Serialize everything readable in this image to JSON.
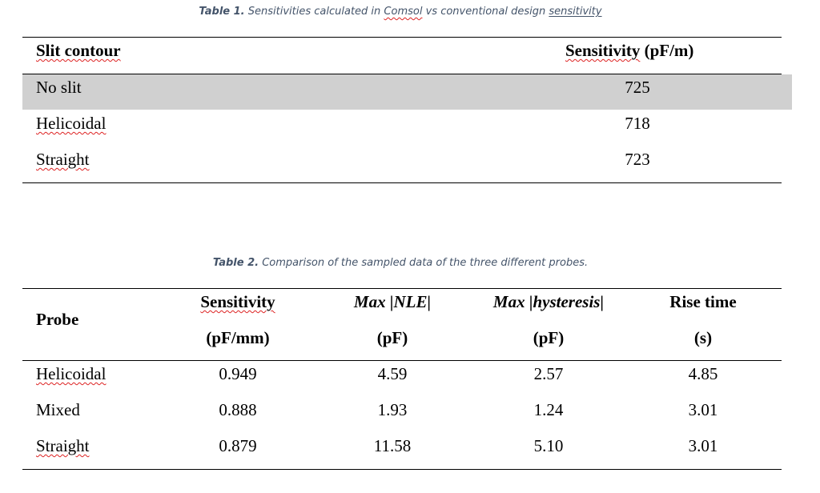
{
  "table1": {
    "caption_label": "Table 1.",
    "caption_pre": "Sensitivities calculated in",
    "caption_comsol": "Comsol",
    "caption_mid": "vs conventional design",
    "caption_sens": "sensitivity",
    "header": {
      "col1": "Slit contour",
      "col2_word": "Sensitivity",
      "col2_unit": "(pF/m)"
    },
    "rows": [
      {
        "contour": "No slit",
        "sensitivity": "725"
      },
      {
        "contour": "Helicoidal",
        "sensitivity": "718"
      },
      {
        "contour": "Straight",
        "sensitivity": "723"
      }
    ],
    "highlight_color": "#d0d0d0"
  },
  "table2": {
    "caption_label": "Table 2.",
    "caption_text": "Comparison of the sampled data of the three different probes.",
    "header": {
      "probe": "Probe",
      "sens_word": "Sensitivity",
      "sens_unit": "(pF/mm)",
      "nle_math": "Max |NLE|",
      "nle_unit": "(pF)",
      "hyst_math": "Max |hysteresis|",
      "hyst_unit": "(pF)",
      "rise": "Rise time",
      "rise_unit": "(s)"
    },
    "rows": [
      {
        "probe": "Helicoidal",
        "sensitivity": "0.949",
        "nle": "4.59",
        "hysteresis": "2.57",
        "rise": "4.85"
      },
      {
        "probe": "Mixed",
        "sensitivity": "0.888",
        "nle": "1.93",
        "hysteresis": "1.24",
        "rise": "3.01"
      },
      {
        "probe": "Straight",
        "sensitivity": "0.879",
        "nle": "11.58",
        "hysteresis": "5.10",
        "rise": "3.01"
      }
    ]
  }
}
